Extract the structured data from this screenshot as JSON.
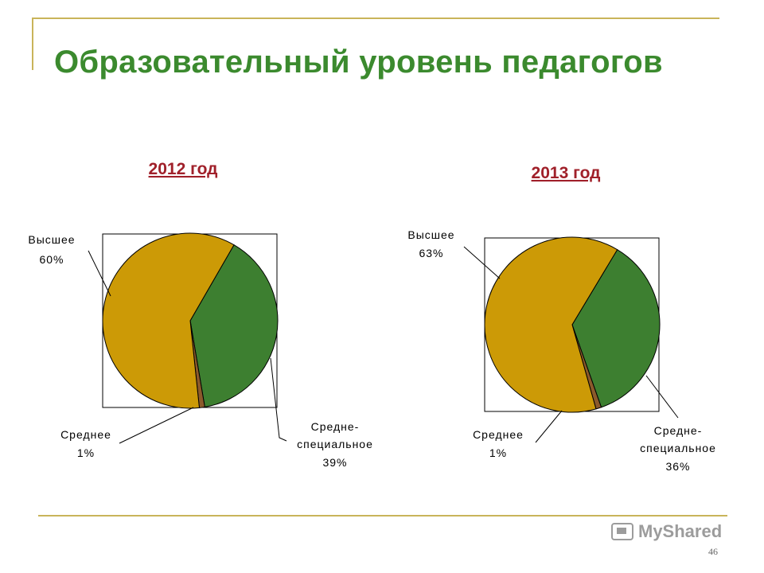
{
  "slide": {
    "title": "Образовательный уровень педагогов",
    "page_number": "46",
    "watermark": "MyShared"
  },
  "colors": {
    "higher": "#cc9a06",
    "secondary_special": "#3d7f30",
    "secondary": "#8b5a2b",
    "title_green": "#3b8a2e",
    "year_title": "#a0202a"
  },
  "chart_data": [
    {
      "type": "pie",
      "title": "2012 год",
      "slices": [
        {
          "label": "Высшее",
          "value": 60,
          "value_label": "60%"
        },
        {
          "label": "Средне-специальное",
          "label_lines": [
            "Средне-",
            "специальное"
          ],
          "value": 39,
          "value_label": "39%"
        },
        {
          "label": "Среднее",
          "value": 1,
          "value_label": "1%"
        }
      ]
    },
    {
      "type": "pie",
      "title": "2013 год",
      "slices": [
        {
          "label": "Высшее",
          "value": 63,
          "value_label": "63%"
        },
        {
          "label": "Средне-специальное",
          "label_lines": [
            "Средне-",
            "специальное"
          ],
          "value": 36,
          "value_label": "36%"
        },
        {
          "label": "Среднее",
          "value": 1,
          "value_label": "1%"
        }
      ]
    }
  ]
}
